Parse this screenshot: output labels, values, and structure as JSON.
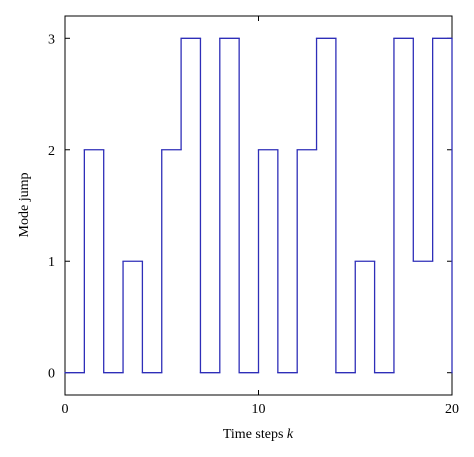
{
  "chart_data": {
    "type": "step",
    "xlabel": {
      "text": "Time steps",
      "variable": "k"
    },
    "ylabel": "Mode jump",
    "x": [
      0,
      1,
      2,
      3,
      4,
      5,
      6,
      7,
      8,
      9,
      10,
      11,
      12,
      13,
      14,
      15,
      16,
      17,
      18,
      19,
      20
    ],
    "values": [
      0,
      2,
      0,
      1,
      0,
      2,
      3,
      0,
      3,
      0,
      2,
      0,
      2,
      3,
      0,
      1,
      0,
      3,
      1,
      3,
      0
    ],
    "color": "#2e2eb8",
    "xlim": [
      0,
      20
    ],
    "xticks": [
      0,
      10,
      20
    ],
    "ylim": [
      -0.2,
      3.2
    ],
    "yticks": [
      0,
      1,
      2,
      3
    ]
  }
}
